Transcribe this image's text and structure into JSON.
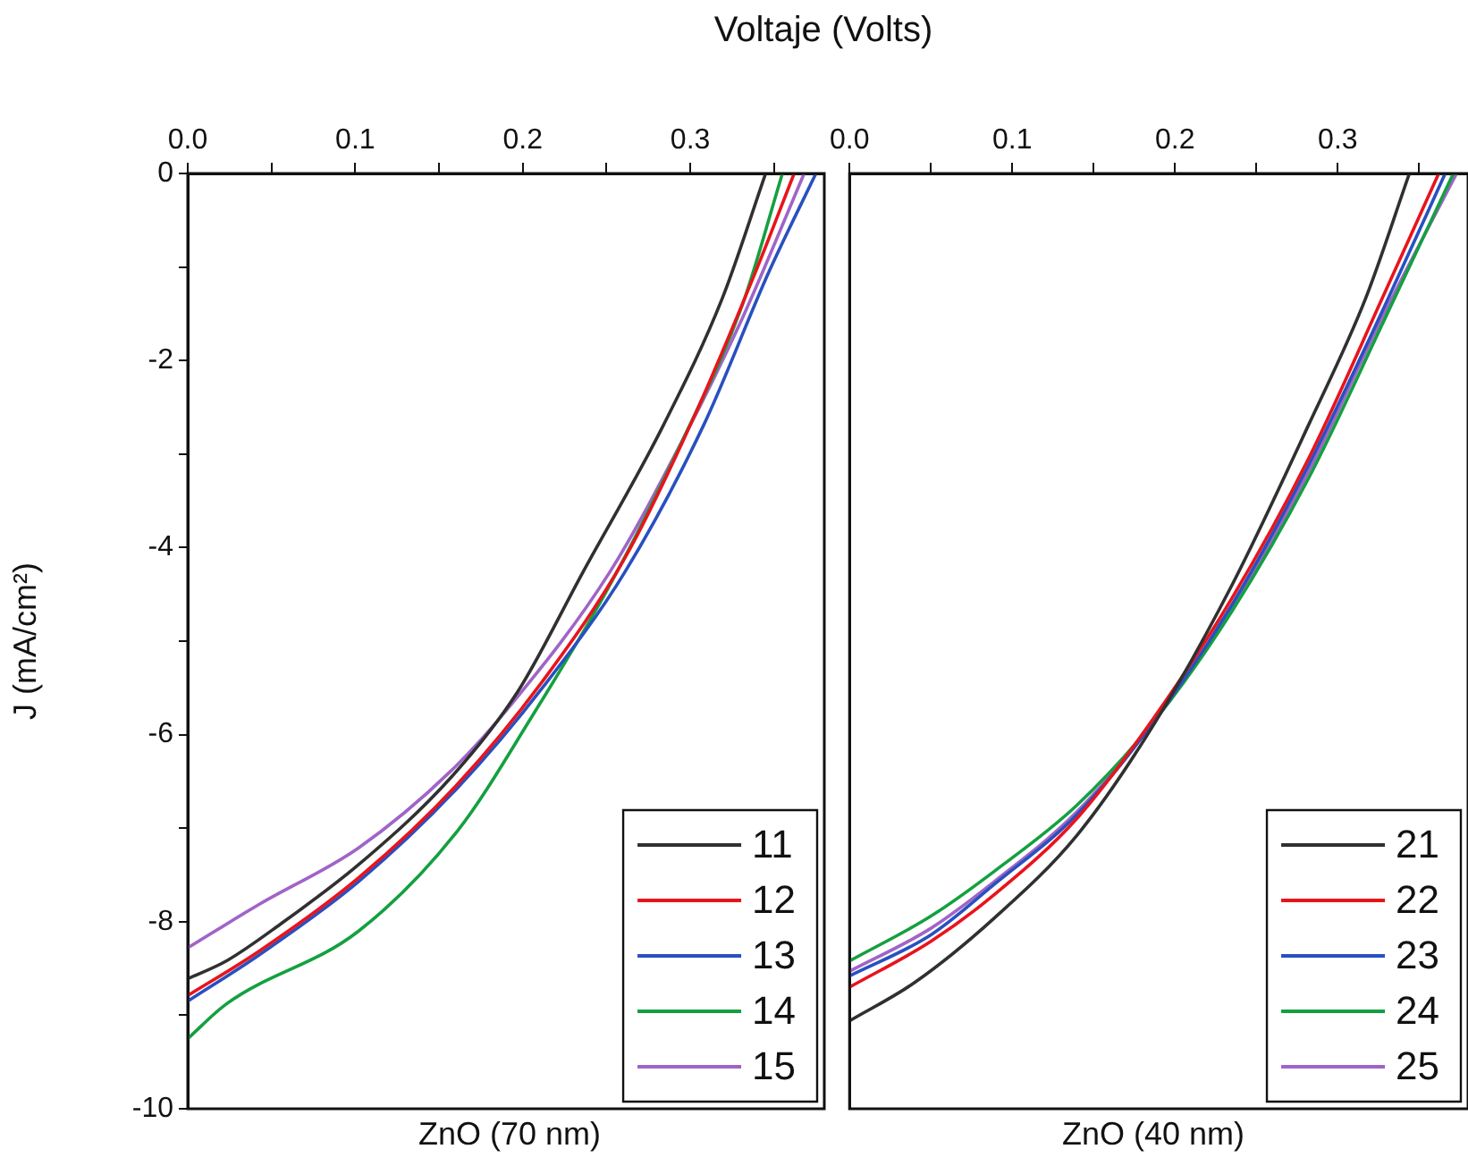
{
  "chart_data": [
    {
      "type": "line",
      "title": "Voltaje (Volts)",
      "xlabel": "ZnO (70 nm)",
      "ylabel": "J (mA/cm²)",
      "xlim": [
        0,
        0.38
      ],
      "ylim": [
        -10,
        0
      ],
      "xticks": [
        {
          "value": 0,
          "label": "0.0"
        },
        {
          "value": 0.05,
          "label": null
        },
        0.1,
        {
          "value": 0.15,
          "label": null
        },
        0.2,
        {
          "value": 0.25,
          "label": null
        },
        0.3,
        {
          "value": 0.35,
          "label": null
        }
      ],
      "yticks": [
        -10,
        {
          "value": -9,
          "label": null
        },
        -8,
        {
          "value": -7,
          "label": null
        },
        -6,
        {
          "value": -5,
          "label": null
        },
        -4,
        {
          "value": -3,
          "label": null
        },
        -2,
        {
          "value": -1,
          "label": null
        },
        0
      ],
      "legend": "bottom right",
      "grid": false,
      "marker": "none",
      "line_style": "solid",
      "series": [
        {
          "name": "11",
          "color": "#303030",
          "x": [
            0,
            0.023,
            0.055,
            0.102,
            0.157,
            0.197,
            0.236,
            0.284,
            0.319,
            0.345
          ],
          "values": [
            -8.61,
            -8.42,
            -8.03,
            -7.39,
            -6.46,
            -5.54,
            -4.26,
            -2.69,
            -1.34,
            0
          ]
        },
        {
          "name": "12",
          "color": "#e8141c",
          "x": [
            0,
            0.043,
            0.102,
            0.161,
            0.213,
            0.261,
            0.3,
            0.339,
            0.362
          ],
          "values": [
            -8.79,
            -8.31,
            -7.53,
            -6.53,
            -5.4,
            -4.11,
            -2.69,
            -1.05,
            0
          ]
        },
        {
          "name": "13",
          "color": "#2850c0",
          "x": [
            0,
            0.043,
            0.102,
            0.161,
            0.213,
            0.261,
            0.308,
            0.347,
            0.375
          ],
          "values": [
            -8.85,
            -8.35,
            -7.57,
            -6.57,
            -5.47,
            -4.26,
            -2.69,
            -1.05,
            0
          ]
        },
        {
          "name": "14",
          "color": "#14a040",
          "x": [
            0,
            0.023,
            0.102,
            0.161,
            0.205,
            0.252,
            0.296,
            0.331,
            0.355
          ],
          "values": [
            -9.25,
            -8.88,
            -8.1,
            -7.03,
            -5.82,
            -4.4,
            -2.83,
            -1.41,
            0
          ]
        },
        {
          "name": "15",
          "color": "#a064c8",
          "x": [
            0,
            0.043,
            0.102,
            0.157,
            0.193,
            0.252,
            0.296,
            0.331,
            0.368
          ],
          "values": [
            -8.28,
            -7.81,
            -7.21,
            -6.39,
            -5.68,
            -4.26,
            -2.83,
            -1.55,
            0
          ]
        }
      ]
    },
    {
      "type": "line",
      "xlabel": "ZnO (40 nm)",
      "xlim": [
        0,
        0.38
      ],
      "ylim": [
        -10,
        0
      ],
      "tick_labels": "x",
      "xticks": [
        {
          "value": 0,
          "label": "0.0"
        },
        {
          "value": 0.05,
          "label": null
        },
        0.1,
        {
          "value": 0.15,
          "label": null
        },
        0.2,
        {
          "value": 0.25,
          "label": null
        },
        0.3,
        {
          "value": 0.35,
          "label": null
        }
      ],
      "legend": "bottom right",
      "grid": false,
      "marker": "none",
      "line_style": "solid",
      "series": [
        {
          "name": "21",
          "color": "#303030",
          "x": [
            0,
            0.04,
            0.089,
            0.14,
            0.187,
            0.235,
            0.282,
            0.317,
            0.344
          ],
          "values": [
            -9.06,
            -8.65,
            -7.96,
            -7.07,
            -5.89,
            -4.4,
            -2.69,
            -1.34,
            0
          ]
        },
        {
          "name": "22",
          "color": "#e8141c",
          "x": [
            0,
            0.05,
            0.089,
            0.14,
            0.187,
            0.235,
            0.282,
            0.329,
            0.362
          ],
          "values": [
            -8.7,
            -8.21,
            -7.71,
            -6.89,
            -5.82,
            -4.54,
            -3.05,
            -1.27,
            0
          ]
        },
        {
          "name": "23",
          "color": "#2850c0",
          "x": [
            0,
            0.05,
            0.089,
            0.14,
            0.187,
            0.235,
            0.282,
            0.329,
            0.366
          ],
          "values": [
            -8.58,
            -8.14,
            -7.6,
            -6.85,
            -5.86,
            -4.61,
            -3.12,
            -1.41,
            0
          ]
        },
        {
          "name": "24",
          "color": "#14a040",
          "x": [
            0,
            0.05,
            0.089,
            0.14,
            0.187,
            0.235,
            0.282,
            0.329,
            0.371
          ],
          "values": [
            -8.42,
            -7.94,
            -7.46,
            -6.75,
            -5.86,
            -4.68,
            -3.26,
            -1.55,
            0
          ]
        },
        {
          "name": "25",
          "color": "#a064c8",
          "x": [
            0,
            0.05,
            0.089,
            0.14,
            0.187,
            0.235,
            0.282,
            0.329,
            0.373
          ],
          "values": [
            -8.53,
            -8.07,
            -7.57,
            -6.82,
            -5.86,
            -4.65,
            -3.19,
            -1.48,
            0
          ]
        }
      ]
    }
  ]
}
